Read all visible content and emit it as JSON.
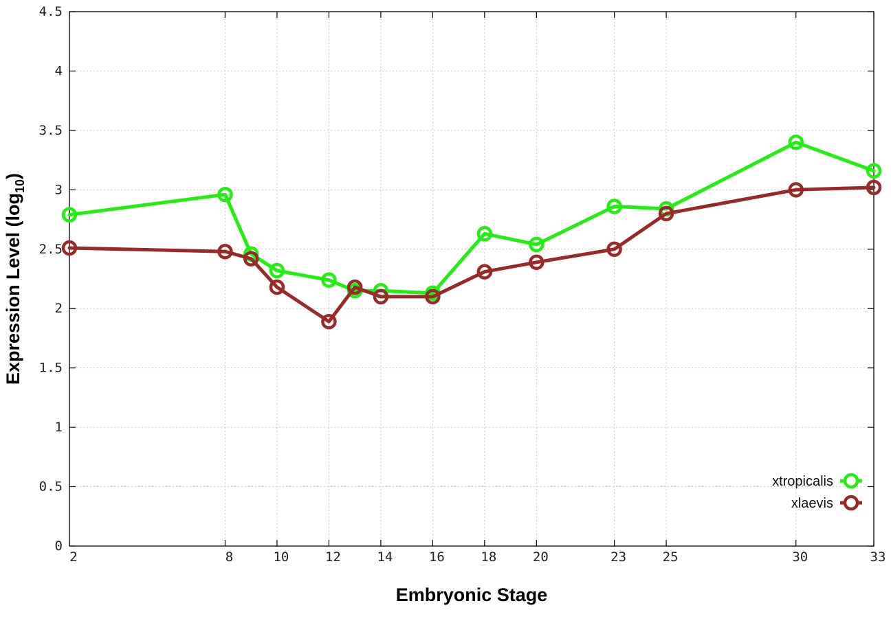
{
  "chart_data": {
    "type": "line",
    "xlabel": "Embryonic Stage",
    "ylabel": "Expression Level (log",
    "ylabel_sub": "10",
    "ylabel_close": ")",
    "ylim": [
      0,
      4.5
    ],
    "xlim": [
      2,
      33
    ],
    "x_ticks": [
      2,
      8,
      10,
      12,
      14,
      16,
      18,
      20,
      23,
      25,
      30,
      33
    ],
    "y_ticks": [
      "0",
      "0.5",
      "1",
      "1.5",
      "2",
      "2.5",
      "3",
      "3.5",
      "4",
      "4.5"
    ],
    "grid": true,
    "legend_position": "bottom-right",
    "series": [
      {
        "name": "xtropicalis",
        "color": "#22ee11",
        "points": [
          [
            2,
            2.79
          ],
          [
            8,
            2.96
          ],
          [
            9,
            2.46
          ],
          [
            10,
            2.32
          ],
          [
            12,
            2.24
          ],
          [
            13,
            2.15
          ],
          [
            14,
            2.15
          ],
          [
            16,
            2.13
          ],
          [
            18,
            2.63
          ],
          [
            20,
            2.54
          ],
          [
            23,
            2.86
          ],
          [
            25,
            2.84
          ],
          [
            30,
            3.4
          ],
          [
            33,
            3.16
          ]
        ]
      },
      {
        "name": "xlaevis",
        "color": "#992a2a",
        "points": [
          [
            2,
            2.51
          ],
          [
            8,
            2.48
          ],
          [
            9,
            2.42
          ],
          [
            10,
            2.18
          ],
          [
            12,
            1.89
          ],
          [
            13,
            2.18
          ],
          [
            14,
            2.1
          ],
          [
            16,
            2.1
          ],
          [
            18,
            2.31
          ],
          [
            20,
            2.39
          ],
          [
            23,
            2.5
          ],
          [
            25,
            2.8
          ],
          [
            30,
            3.0
          ],
          [
            33,
            3.02
          ]
        ]
      }
    ]
  }
}
